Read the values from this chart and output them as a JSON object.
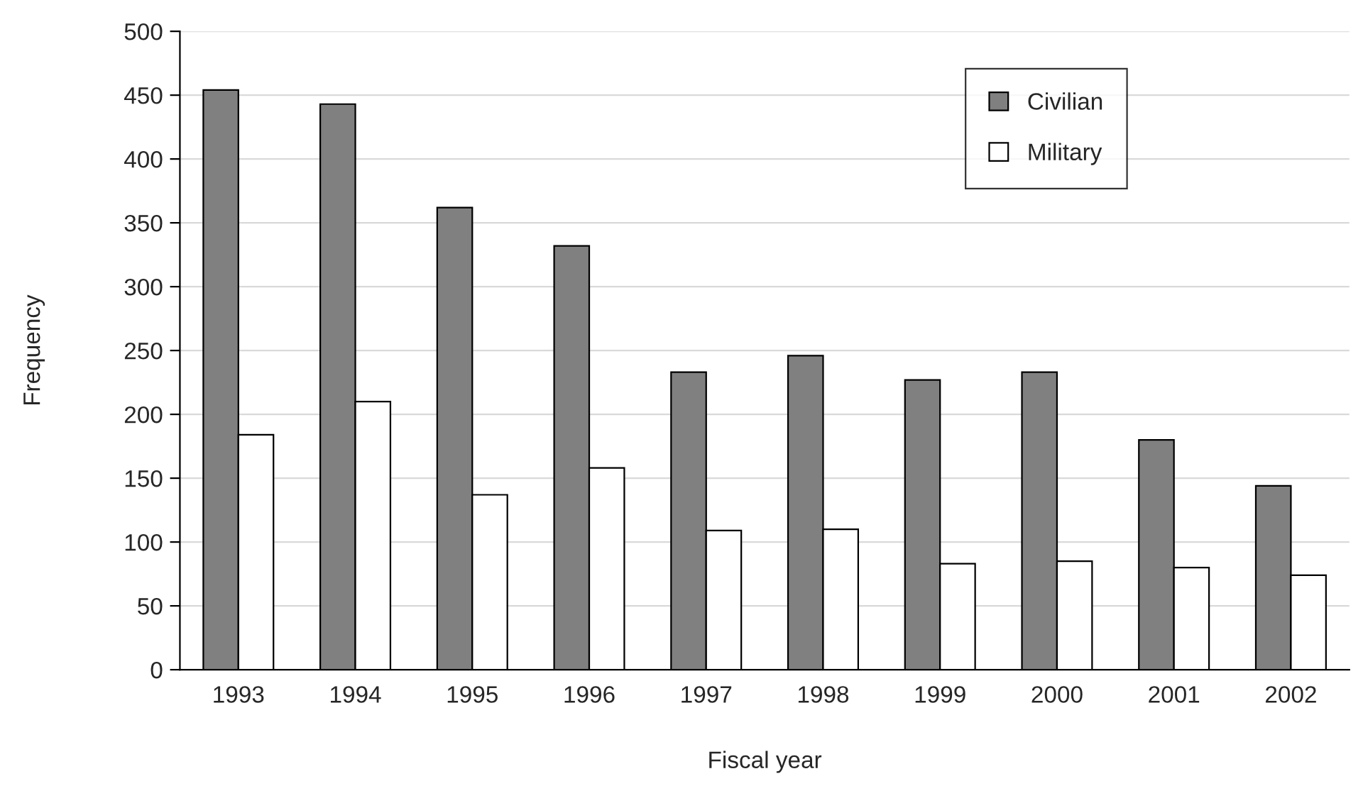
{
  "chart_data": {
    "type": "bar",
    "xlabel": "Fiscal year",
    "ylabel": "Frequency",
    "categories": [
      "1993",
      "1994",
      "1995",
      "1996",
      "1997",
      "1998",
      "1999",
      "2000",
      "2001",
      "2002"
    ],
    "series": [
      {
        "name": "Civilian",
        "color": "#808080",
        "values": [
          454,
          443,
          362,
          332,
          233,
          246,
          227,
          233,
          180,
          144
        ]
      },
      {
        "name": "Military",
        "color": "#ffffff",
        "values": [
          184,
          210,
          137,
          158,
          109,
          110,
          83,
          85,
          80,
          74
        ]
      }
    ],
    "ylim": [
      0,
      500
    ],
    "yticks": [
      0,
      50,
      100,
      150,
      200,
      250,
      300,
      350,
      400,
      450,
      500
    ],
    "grid": "y",
    "legend": "top right"
  }
}
